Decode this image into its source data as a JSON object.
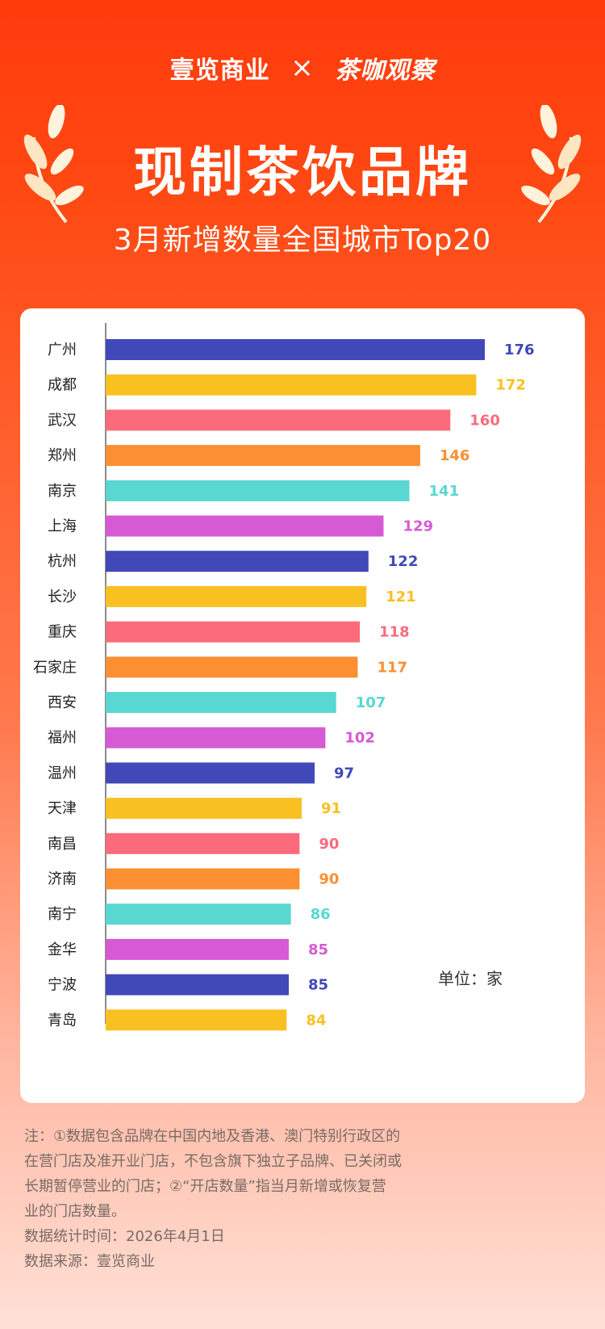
{
  "header": {
    "brand_left": "壹览商业",
    "brand_sep": "×",
    "brand_right": "茶咖观察",
    "title": "现制茶饮品牌",
    "subtitle": "3月新增数量全国城市Top20"
  },
  "chart_data": {
    "type": "bar",
    "orientation": "horizontal",
    "categories": [
      "广州",
      "成都",
      "武汉",
      "郑州",
      "南京",
      "上海",
      "杭州",
      "长沙",
      "重庆",
      "石家庄",
      "西安",
      "福州",
      "温州",
      "天津",
      "南昌",
      "济南",
      "南宁",
      "金华",
      "宁波",
      "青岛"
    ],
    "values": [
      176,
      172,
      160,
      146,
      141,
      129,
      122,
      121,
      118,
      117,
      107,
      102,
      97,
      91,
      90,
      90,
      86,
      85,
      85,
      84
    ],
    "unit_label": "单位：家",
    "xlim": [
      0,
      176
    ],
    "palette": [
      "#4148b7",
      "#f9c022",
      "#fb6b7c",
      "#fb8f32",
      "#58d8d0",
      "#d65ad3"
    ]
  },
  "notes": {
    "line1": "注：①数据包含品牌在中国内地及香港、澳门特别行政区的",
    "line2": "在营门店及准开业门店，不包含旗下独立子品牌、已关闭或",
    "line3": "长期暂停营业的门店；②“开店数量”指当月新增或恢复营",
    "line4": "业的门店数量。",
    "stat_time": "数据统计时间：2026年4月1日",
    "source": "数据来源：壹览商业"
  }
}
